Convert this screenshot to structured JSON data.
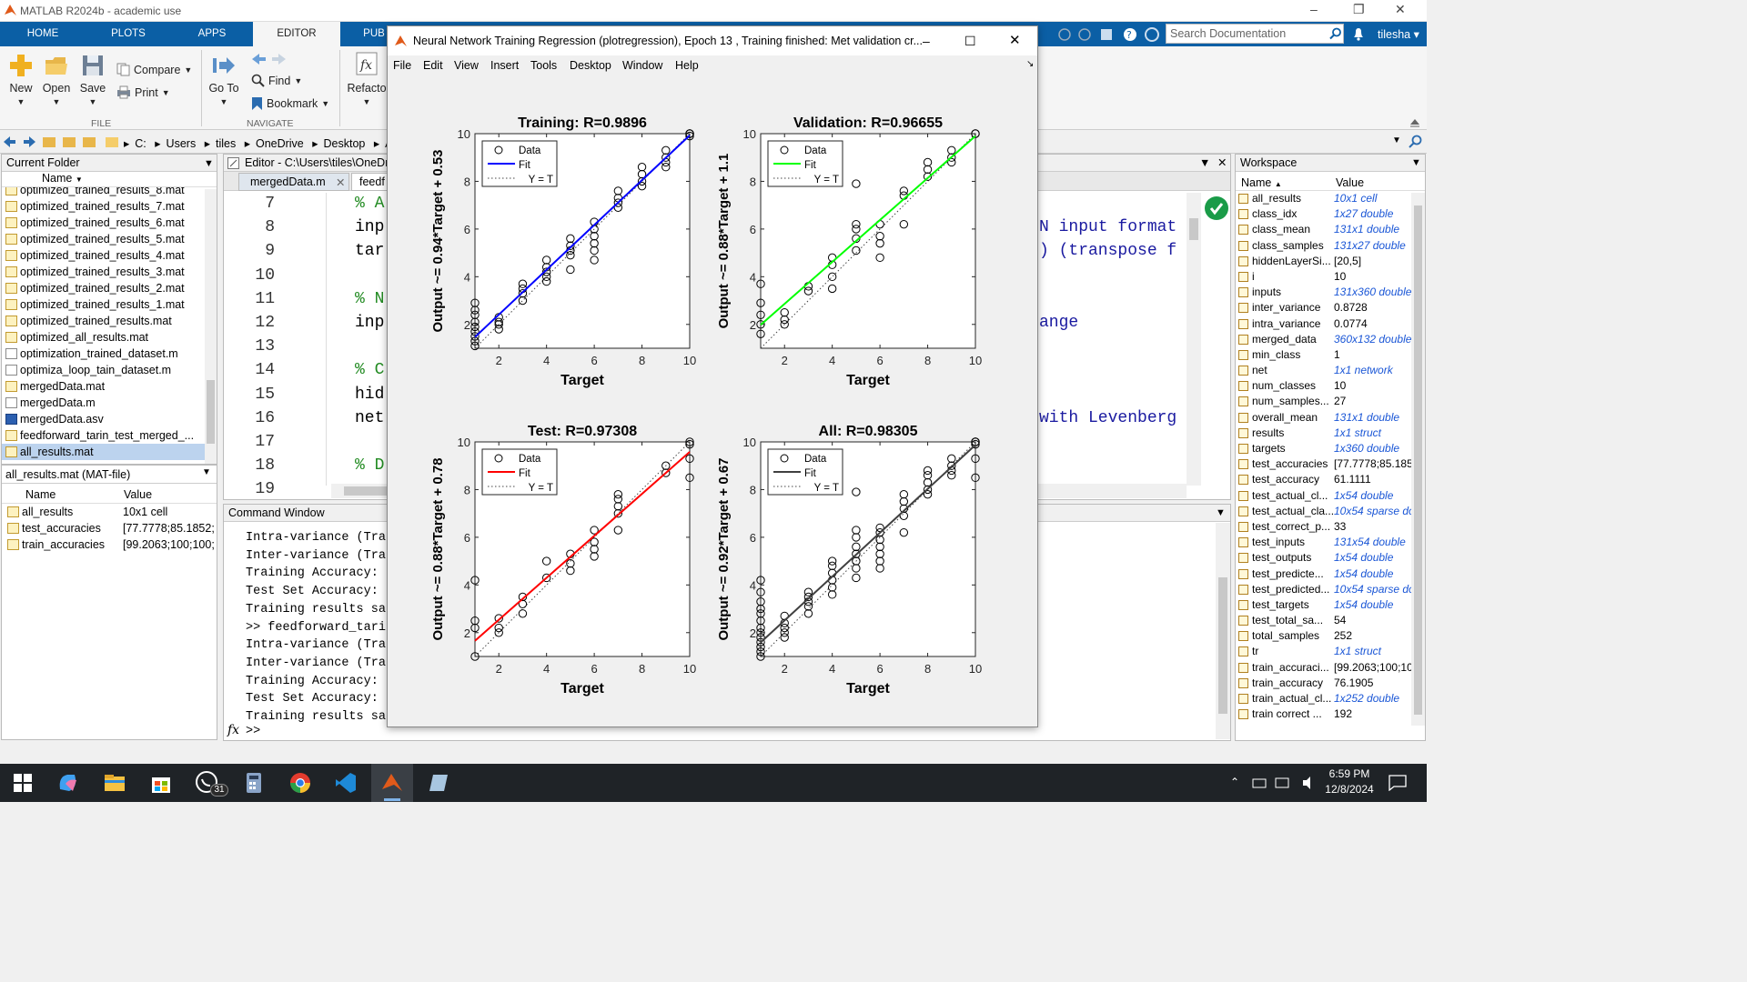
{
  "window": {
    "title": "MATLAB R2024b - academic use"
  },
  "tabs": [
    {
      "label": "HOME"
    },
    {
      "label": "PLOTS"
    },
    {
      "label": "APPS"
    },
    {
      "label": "EDITOR"
    },
    {
      "label": "PUB"
    }
  ],
  "toolstrip": {
    "new": "New",
    "open": "Open",
    "save": "Save",
    "compare": "Compare",
    "print": "Print",
    "file_section": "FILE",
    "goto": "Go To",
    "find": "Find",
    "bookmark": "Bookmark",
    "navigate_section": "NAVIGATE",
    "refactor": "Refacto"
  },
  "search": {
    "placeholder": "Search Documentation"
  },
  "user": "tilesha",
  "breadcrumb": [
    "C:",
    "Users",
    "tiles",
    "OneDrive",
    "Desktop",
    "Al"
  ],
  "current_folder": {
    "title": "Current Folder",
    "col_name": "Name",
    "files": [
      {
        "name": "optimized_trained_results_8.mat",
        "type": "mat"
      },
      {
        "name": "optimized_trained_results_7.mat",
        "type": "mat"
      },
      {
        "name": "optimized_trained_results_6.mat",
        "type": "mat"
      },
      {
        "name": "optimized_trained_results_5.mat",
        "type": "mat"
      },
      {
        "name": "optimized_trained_results_4.mat",
        "type": "mat"
      },
      {
        "name": "optimized_trained_results_3.mat",
        "type": "mat"
      },
      {
        "name": "optimized_trained_results_2.mat",
        "type": "mat"
      },
      {
        "name": "optimized_trained_results_1.mat",
        "type": "mat"
      },
      {
        "name": "optimized_trained_results.mat",
        "type": "mat"
      },
      {
        "name": "optimized_all_results.mat",
        "type": "mat"
      },
      {
        "name": "optimization_trained_dataset.m",
        "type": "m"
      },
      {
        "name": "optimiza_loop_tain_dataset.m",
        "type": "m"
      },
      {
        "name": "mergedData.mat",
        "type": "mat"
      },
      {
        "name": "mergedData.m",
        "type": "m"
      },
      {
        "name": "mergedData.asv",
        "type": "asv"
      },
      {
        "name": "feedforward_tarin_test_merged_...",
        "type": "mat"
      },
      {
        "name": "all_results.mat",
        "type": "mat",
        "selected": true
      }
    ]
  },
  "details": {
    "title": "all_results.mat  (MAT-file)",
    "col_name": "Name",
    "col_value": "Value",
    "rows": [
      {
        "name": "all_results",
        "value": "10x1 cell"
      },
      {
        "name": "test_accuracies",
        "value": "[77.7778;85.1852;..."
      },
      {
        "name": "train_accuracies",
        "value": "[99.2063;100;100;..."
      }
    ]
  },
  "editor": {
    "title": "Editor - C:\\Users\\tiles\\OneDri",
    "tabs": [
      "mergedData.m",
      "feedf"
    ],
    "line_numbers": [
      "7",
      "8",
      "9",
      "10",
      "11",
      "12",
      "13",
      "14",
      "15",
      "16",
      "17",
      "18",
      "19"
    ],
    "code_left": [
      "% A",
      "inp",
      "tar",
      "",
      "% N",
      "inp",
      "",
      "% C",
      "hid",
      "net",
      "",
      "% D",
      ""
    ],
    "code_right": [
      {
        "text": "N input format",
        "line": "8"
      },
      {
        "text": ") (transpose f",
        "line": "9"
      },
      {
        "text": "ange",
        "line": "12"
      },
      {
        "text": "with Levenberg",
        "line": "16"
      }
    ]
  },
  "command_window": {
    "title": "Command Window",
    "lines": [
      "Intra-variance (Tra",
      "Inter-variance (Tra",
      "Training Accuracy:",
      "Test Set Accuracy:",
      "Training results sa",
      ">> feedforward_tari",
      "Intra-variance (Tra",
      "Inter-variance (Tra",
      "Training Accuracy:",
      "Test Set Accuracy:",
      "Training results sa"
    ],
    "prompt": ">>",
    "fx": "fx"
  },
  "workspace": {
    "title": "Workspace",
    "col_name": "Name",
    "col_value": "Value",
    "rows": [
      {
        "name": "all_results",
        "value": "10x1 cell",
        "blue": true
      },
      {
        "name": "class_idx",
        "value": "1x27 double",
        "blue": true
      },
      {
        "name": "class_mean",
        "value": "131x1 double",
        "blue": true
      },
      {
        "name": "class_samples",
        "value": "131x27 double",
        "blue": true
      },
      {
        "name": "hiddenLayerSi...",
        "value": "[20,5]",
        "blue": false
      },
      {
        "name": "i",
        "value": "10",
        "blue": false
      },
      {
        "name": "inputs",
        "value": "131x360 double",
        "blue": true
      },
      {
        "name": "inter_variance",
        "value": "0.8728",
        "blue": false
      },
      {
        "name": "intra_variance",
        "value": "0.0774",
        "blue": false
      },
      {
        "name": "merged_data",
        "value": "360x132 double",
        "blue": true
      },
      {
        "name": "min_class",
        "value": "1",
        "blue": false
      },
      {
        "name": "net",
        "value": "1x1 network",
        "blue": true
      },
      {
        "name": "num_classes",
        "value": "10",
        "blue": false
      },
      {
        "name": "num_samples...",
        "value": "27",
        "blue": false
      },
      {
        "name": "overall_mean",
        "value": "131x1 double",
        "blue": true
      },
      {
        "name": "results",
        "value": "1x1 struct",
        "blue": true
      },
      {
        "name": "targets",
        "value": "1x360 double",
        "blue": true
      },
      {
        "name": "test_accuracies",
        "value": "[77.7778;85.185",
        "blue": false
      },
      {
        "name": "test_accuracy",
        "value": "61.1111",
        "blue": false
      },
      {
        "name": "test_actual_cl...",
        "value": "1x54 double",
        "blue": true
      },
      {
        "name": "test_actual_cla...",
        "value": "10x54 sparse do",
        "blue": true
      },
      {
        "name": "test_correct_p...",
        "value": "33",
        "blue": false
      },
      {
        "name": "test_inputs",
        "value": "131x54 double",
        "blue": true
      },
      {
        "name": "test_outputs",
        "value": "1x54 double",
        "blue": true
      },
      {
        "name": "test_predicte...",
        "value": "1x54 double",
        "blue": true
      },
      {
        "name": "test_predicted...",
        "value": "10x54 sparse do",
        "blue": true
      },
      {
        "name": "test_targets",
        "value": "1x54 double",
        "blue": true
      },
      {
        "name": "test_total_sa...",
        "value": "54",
        "blue": false
      },
      {
        "name": "total_samples",
        "value": "252",
        "blue": false
      },
      {
        "name": "tr",
        "value": "1x1 struct",
        "blue": true
      },
      {
        "name": "train_accuraci...",
        "value": "[99.2063;100;10",
        "blue": false
      },
      {
        "name": "train_accuracy",
        "value": "76.1905",
        "blue": false
      },
      {
        "name": "train_actual_cl...",
        "value": "1x252 double",
        "blue": true
      },
      {
        "name": "train correct ...",
        "value": "192",
        "blue": false
      }
    ]
  },
  "figure": {
    "title": "Neural Network Training Regression (plotregression), Epoch 13 , Training finished: Met validation cr...",
    "menu": [
      "File",
      "Edit",
      "View",
      "Insert",
      "Tools",
      "Desktop",
      "Window",
      "Help"
    ]
  },
  "chart_data": [
    {
      "type": "scatter",
      "title": "Training: R=0.9896",
      "xlabel": "Target",
      "ylabel": "Output ~= 0.94*Target + 0.53",
      "xlim": [
        1,
        10
      ],
      "ylim": [
        1,
        10
      ],
      "fit": {
        "slope": 0.94,
        "intercept": 0.53,
        "color": "#0000ff"
      },
      "legend": [
        "Data",
        "Fit",
        "Y = T"
      ],
      "legend_position": "top-left",
      "x_ticks": [
        "2",
        "4",
        "6",
        "8",
        "10"
      ],
      "y_ticks": [
        "2",
        "4",
        "6",
        "8",
        "10"
      ],
      "points": [
        [
          1,
          1.1
        ],
        [
          1,
          1.3
        ],
        [
          1,
          1.5
        ],
        [
          1,
          1.7
        ],
        [
          1,
          1.9
        ],
        [
          1,
          2.1
        ],
        [
          1,
          2.4
        ],
        [
          1,
          2.6
        ],
        [
          1,
          2.9
        ],
        [
          2,
          1.8
        ],
        [
          2,
          2
        ],
        [
          2,
          2.1
        ],
        [
          2,
          2.3
        ],
        [
          3,
          3
        ],
        [
          3,
          3.3
        ],
        [
          3,
          3.5
        ],
        [
          3,
          3.7
        ],
        [
          4,
          3.8
        ],
        [
          4,
          4
        ],
        [
          4,
          4.2
        ],
        [
          4,
          4.4
        ],
        [
          4,
          4.7
        ],
        [
          5,
          4.3
        ],
        [
          5,
          4.9
        ],
        [
          5,
          5.1
        ],
        [
          5,
          5.3
        ],
        [
          5,
          5.6
        ],
        [
          6,
          4.7
        ],
        [
          6,
          5.1
        ],
        [
          6,
          5.4
        ],
        [
          6,
          5.7
        ],
        [
          6,
          6
        ],
        [
          6,
          6.3
        ],
        [
          7,
          6.9
        ],
        [
          7,
          7.1
        ],
        [
          7,
          7.3
        ],
        [
          7,
          7.6
        ],
        [
          8,
          7.8
        ],
        [
          8,
          8
        ],
        [
          8,
          8.3
        ],
        [
          8,
          8.6
        ],
        [
          9,
          8.6
        ],
        [
          9,
          8.8
        ],
        [
          9,
          9
        ],
        [
          9,
          9.3
        ],
        [
          10,
          9.9
        ],
        [
          10,
          10
        ],
        [
          10,
          10.1
        ],
        [
          10,
          10.2
        ]
      ]
    },
    {
      "type": "scatter",
      "title": "Validation: R=0.96655",
      "xlabel": "Target",
      "ylabel": "Output ~= 0.88*Target + 1.1",
      "xlim": [
        1,
        10
      ],
      "ylim": [
        1,
        10
      ],
      "fit": {
        "slope": 0.88,
        "intercept": 1.1,
        "color": "#00ff00"
      },
      "legend": [
        "Data",
        "Fit",
        "Y = T"
      ],
      "legend_position": "top-left",
      "x_ticks": [
        "2",
        "4",
        "6",
        "8",
        "10"
      ],
      "y_ticks": [
        "2",
        "4",
        "6",
        "8",
        "10"
      ],
      "points": [
        [
          1,
          1.6
        ],
        [
          1,
          2
        ],
        [
          1,
          2.4
        ],
        [
          1,
          2.9
        ],
        [
          1,
          3.7
        ],
        [
          2,
          2
        ],
        [
          2,
          2.2
        ],
        [
          2,
          2.5
        ],
        [
          3,
          3.4
        ],
        [
          3,
          3.6
        ],
        [
          4,
          3.5
        ],
        [
          4,
          4
        ],
        [
          4,
          4.5
        ],
        [
          4,
          4.8
        ],
        [
          5,
          5.1
        ],
        [
          5,
          5.6
        ],
        [
          5,
          6
        ],
        [
          5,
          6.2
        ],
        [
          5,
          7.9
        ],
        [
          6,
          4.8
        ],
        [
          6,
          5.4
        ],
        [
          6,
          5.7
        ],
        [
          6,
          6.2
        ],
        [
          7,
          6.2
        ],
        [
          7,
          7.4
        ],
        [
          7,
          7.6
        ],
        [
          8,
          8.2
        ],
        [
          8,
          8.5
        ],
        [
          8,
          8.8
        ],
        [
          9,
          8.8
        ],
        [
          9,
          9
        ],
        [
          9,
          9.3
        ],
        [
          10,
          10.1
        ],
        [
          10,
          10.2
        ]
      ]
    },
    {
      "type": "scatter",
      "title": "Test: R=0.97308",
      "xlabel": "Target",
      "ylabel": "Output ~= 0.88*Target + 0.78",
      "xlim": [
        1,
        10
      ],
      "ylim": [
        1,
        10
      ],
      "fit": {
        "slope": 0.88,
        "intercept": 0.78,
        "color": "#ff0000"
      },
      "legend": [
        "Data",
        "Fit",
        "Y = T"
      ],
      "legend_position": "top-left",
      "x_ticks": [
        "2",
        "4",
        "6",
        "8",
        "10"
      ],
      "y_ticks": [
        "2",
        "4",
        "6",
        "8",
        "10"
      ],
      "points": [
        [
          1,
          1
        ],
        [
          1,
          2.2
        ],
        [
          1,
          2.5
        ],
        [
          1,
          4.2
        ],
        [
          2,
          2
        ],
        [
          2,
          2.2
        ],
        [
          2,
          2.6
        ],
        [
          3,
          2.8
        ],
        [
          3,
          3.2
        ],
        [
          3,
          3.5
        ],
        [
          4,
          4.3
        ],
        [
          4,
          5
        ],
        [
          5,
          4.6
        ],
        [
          5,
          4.9
        ],
        [
          5,
          5.3
        ],
        [
          6,
          5.2
        ],
        [
          6,
          5.5
        ],
        [
          6,
          5.8
        ],
        [
          6,
          6.3
        ],
        [
          7,
          6.3
        ],
        [
          7,
          7
        ],
        [
          7,
          7.3
        ],
        [
          7,
          7.6
        ],
        [
          7,
          7.8
        ],
        [
          9,
          8.7
        ],
        [
          9,
          9
        ],
        [
          10,
          8.5
        ],
        [
          10,
          9.3
        ],
        [
          10,
          9.9
        ],
        [
          10,
          10.1
        ]
      ]
    },
    {
      "type": "scatter",
      "title": "All: R=0.98305",
      "xlabel": "Target",
      "ylabel": "Output ~= 0.92*Target + 0.67",
      "xlim": [
        1,
        10
      ],
      "ylim": [
        1,
        10
      ],
      "fit": {
        "slope": 0.92,
        "intercept": 0.67,
        "color": "#404040"
      },
      "legend": [
        "Data",
        "Fit",
        "Y = T"
      ],
      "legend_position": "top-left",
      "x_ticks": [
        "2",
        "4",
        "6",
        "8",
        "10"
      ],
      "y_ticks": [
        "2",
        "4",
        "6",
        "8",
        "10"
      ],
      "points": [
        [
          1,
          1
        ],
        [
          1,
          1.2
        ],
        [
          1,
          1.4
        ],
        [
          1,
          1.6
        ],
        [
          1,
          1.8
        ],
        [
          1,
          2
        ],
        [
          1,
          2.2
        ],
        [
          1,
          2.5
        ],
        [
          1,
          2.8
        ],
        [
          1,
          3
        ],
        [
          1,
          3.3
        ],
        [
          1,
          3.7
        ],
        [
          1,
          4.2
        ],
        [
          2,
          1.8
        ],
        [
          2,
          2
        ],
        [
          2,
          2.2
        ],
        [
          2,
          2.4
        ],
        [
          2,
          2.7
        ],
        [
          3,
          2.8
        ],
        [
          3,
          3.1
        ],
        [
          3,
          3.3
        ],
        [
          3,
          3.5
        ],
        [
          3,
          3.7
        ],
        [
          4,
          3.6
        ],
        [
          4,
          3.9
        ],
        [
          4,
          4.2
        ],
        [
          4,
          4.5
        ],
        [
          4,
          4.8
        ],
        [
          4,
          5
        ],
        [
          5,
          4.3
        ],
        [
          5,
          4.7
        ],
        [
          5,
          5
        ],
        [
          5,
          5.3
        ],
        [
          5,
          5.6
        ],
        [
          5,
          6
        ],
        [
          5,
          6.3
        ],
        [
          5,
          7.9
        ],
        [
          6,
          4.7
        ],
        [
          6,
          5
        ],
        [
          6,
          5.3
        ],
        [
          6,
          5.6
        ],
        [
          6,
          5.9
        ],
        [
          6,
          6.2
        ],
        [
          6,
          6.4
        ],
        [
          7,
          6.2
        ],
        [
          7,
          6.9
        ],
        [
          7,
          7.2
        ],
        [
          7,
          7.5
        ],
        [
          7,
          7.8
        ],
        [
          8,
          7.8
        ],
        [
          8,
          8
        ],
        [
          8,
          8.3
        ],
        [
          8,
          8.6
        ],
        [
          8,
          8.8
        ],
        [
          9,
          8.6
        ],
        [
          9,
          8.8
        ],
        [
          9,
          9
        ],
        [
          9,
          9.3
        ],
        [
          10,
          8.5
        ],
        [
          10,
          9.3
        ],
        [
          10,
          9.9
        ],
        [
          10,
          10
        ],
        [
          10,
          10.1
        ],
        [
          10,
          10.2
        ]
      ]
    }
  ],
  "taskbar": {
    "time": "6:59 PM",
    "date": "12/8/2024",
    "whatsapp_badge": "31"
  }
}
